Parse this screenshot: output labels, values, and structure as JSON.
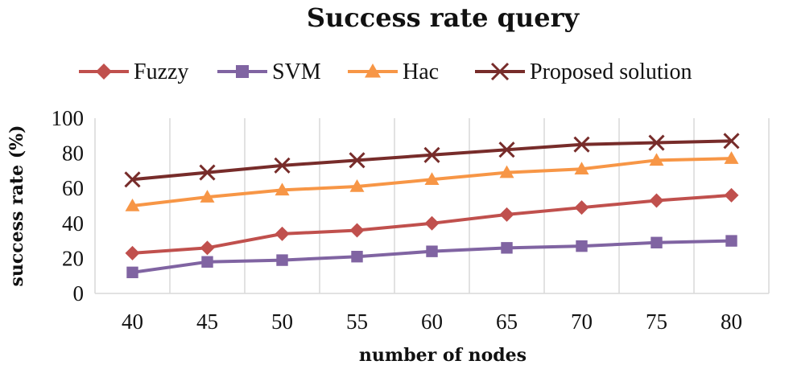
{
  "chart_data": {
    "type": "line",
    "title": "Success rate query",
    "xlabel": "number of nodes",
    "ylabel": "success rate (%)",
    "x": [
      40,
      45,
      50,
      55,
      60,
      65,
      70,
      75,
      80
    ],
    "yticks": [
      0,
      20,
      40,
      60,
      80,
      100
    ],
    "ylim": [
      0,
      100
    ],
    "legend_position": "top",
    "grid": "vertical",
    "series": [
      {
        "name": "Fuzzy",
        "color": "#c0504d",
        "marker": "diamond",
        "values": [
          23,
          26,
          34,
          36,
          40,
          45,
          49,
          53,
          56
        ]
      },
      {
        "name": "SVM",
        "color": "#8064a2",
        "marker": "square",
        "values": [
          12,
          18,
          19,
          21,
          24,
          26,
          27,
          29,
          30
        ]
      },
      {
        "name": "Hac",
        "color": "#f79646",
        "marker": "triangle",
        "values": [
          50,
          55,
          59,
          61,
          65,
          69,
          71,
          76,
          77
        ]
      },
      {
        "name": "Proposed solution",
        "color": "#772c2a",
        "marker": "x",
        "values": [
          65,
          69,
          73,
          76,
          79,
          82,
          85,
          86,
          87
        ]
      }
    ]
  }
}
